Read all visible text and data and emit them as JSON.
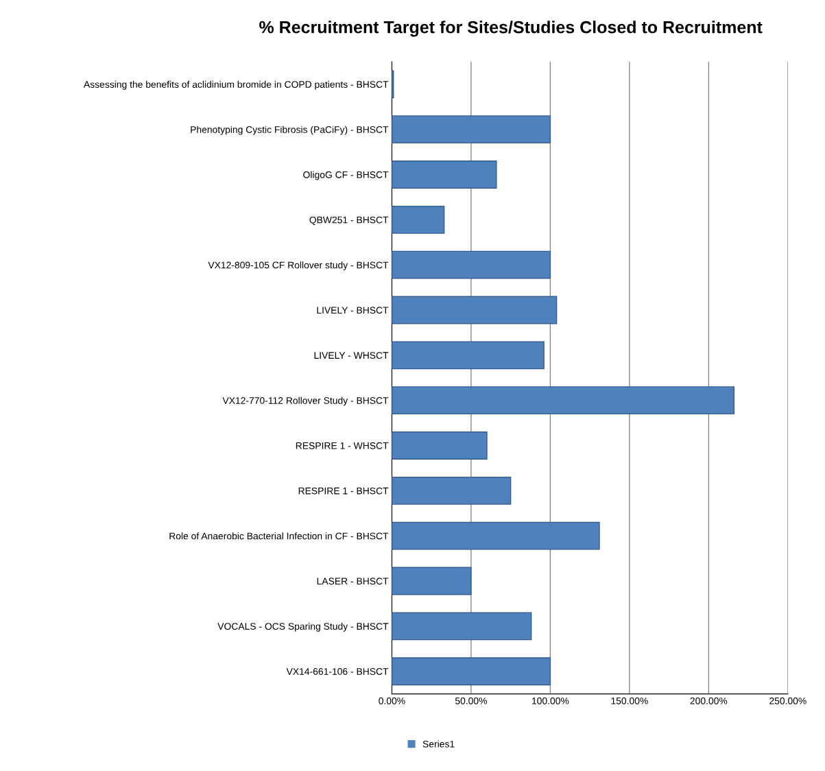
{
  "chart_data": {
    "type": "bar",
    "orientation": "horizontal",
    "title": "% Recruitment Target for Sites/Studies Closed to Recruitment",
    "categories": [
      "Assessing the benefits of aclidinium bromide in COPD patients - BHSCT",
      "Phenotyping Cystic Fibrosis (PaCiFy) - BHSCT",
      "OligoG CF - BHSCT",
      "QBW251 - BHSCT",
      "VX12-809-105 CF Rollover study - BHSCT",
      "LIVELY - BHSCT",
      "LIVELY - WHSCT",
      "VX12-770-112 Rollover Study - BHSCT",
      "RESPIRE 1 - WHSCT",
      "RESPIRE 1 - BHSCT",
      "Role of Anaerobic Bacterial Infection in CF - BHSCT",
      "LASER - BHSCT",
      "VOCALS - OCS Sparing Study - BHSCT",
      "VX14-661-106 - BHSCT"
    ],
    "series": [
      {
        "name": "Series1",
        "color": "#4f81bd",
        "values": [
          1,
          100,
          66,
          33,
          100,
          104,
          96,
          216,
          60,
          75,
          131,
          50,
          88,
          100
        ]
      }
    ],
    "xlim": [
      0,
      250
    ],
    "xticks": [
      {
        "value": 0,
        "label": "0.00%"
      },
      {
        "value": 50,
        "label": "50.00%"
      },
      {
        "value": 100,
        "label": "100.00%"
      },
      {
        "value": 150,
        "label": "150.00%"
      },
      {
        "value": 200,
        "label": "200.00%"
      },
      {
        "value": 250,
        "label": "250.00%"
      }
    ],
    "grid": "x",
    "legend": "bottom"
  }
}
